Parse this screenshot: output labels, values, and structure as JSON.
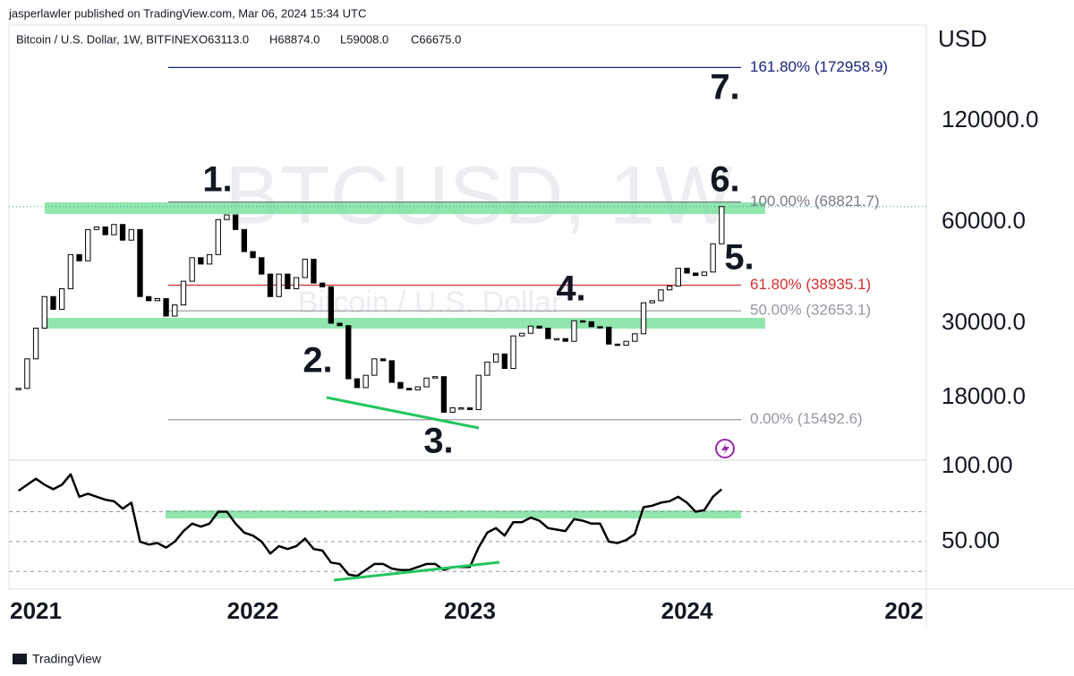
{
  "chart_data": {
    "type": "candlestick",
    "published": "jasperlawler published on TradingView.com, Mar 06, 2024 15:34 UTC",
    "symbol": "Bitcoin / U.S. Dollar, 1W, BITFINEX",
    "ohlc": [
      "O63113.0",
      "H68874.0",
      "L59008.0",
      "C66675.0"
    ],
    "watermark": [
      "BTCUSD, 1W",
      "Bitcoin / U.S. Dollar"
    ],
    "currency": "USD",
    "footer": "TradingView",
    "log_scale": true,
    "up_color": "#ffffff",
    "down_color": "#000000",
    "x": [
      2020.92,
      2020.96,
      2021.0,
      2021.04,
      2021.08,
      2021.12,
      2021.16,
      2021.2,
      2021.24,
      2021.28,
      2021.32,
      2021.36,
      2021.4,
      2021.44,
      2021.48,
      2021.52,
      2021.56,
      2021.6,
      2021.64,
      2021.68,
      2021.72,
      2021.76,
      2021.8,
      2021.84,
      2021.88,
      2021.92,
      2021.96,
      2022.0,
      2022.04,
      2022.08,
      2022.12,
      2022.16,
      2022.2,
      2022.24,
      2022.28,
      2022.32,
      2022.36,
      2022.4,
      2022.44,
      2022.48,
      2022.52,
      2022.56,
      2022.6,
      2022.64,
      2022.68,
      2022.72,
      2022.76,
      2022.8,
      2022.84,
      2022.88,
      2022.92,
      2022.96,
      2023.0,
      2023.04,
      2023.08,
      2023.12,
      2023.16,
      2023.2,
      2023.24,
      2023.28,
      2023.32,
      2023.36,
      2023.4,
      2023.44,
      2023.48,
      2023.52,
      2023.56,
      2023.6,
      2023.64,
      2023.68,
      2023.72,
      2023.76,
      2023.8,
      2023.84,
      2023.88,
      2023.92,
      2023.96,
      2024.0,
      2024.04,
      2024.08,
      2024.12,
      2024.16
    ],
    "values": [
      19200,
      23500,
      29000,
      36000,
      33000,
      38000,
      48000,
      46000,
      57000,
      58000,
      55000,
      59000,
      53000,
      57000,
      36000,
      35000,
      35500,
      31500,
      34000,
      40000,
      47000,
      45000,
      48000,
      61000,
      63000,
      57000,
      49000,
      47000,
      42000,
      36000,
      42000,
      38000,
      41000,
      46500,
      39500,
      38500,
      30000,
      29500,
      20500,
      19300,
      21000,
      23500,
      23200,
      20000,
      19200,
      19000,
      19400,
      20600,
      20800,
      16300,
      16800,
      16800,
      16600,
      21000,
      23000,
      24300,
      22000,
      27500,
      28000,
      29400,
      29000,
      27000,
      27000,
      26500,
      30500,
      30300,
      29300,
      29200,
      26000,
      25800,
      26500,
      27900,
      34500,
      35000,
      37700,
      38700,
      43700,
      42300,
      41600,
      42600,
      51700,
      66675
    ],
    "xlim": [
      2020.876,
      2025.103
    ],
    "xticks": [
      2021,
      2022,
      2023,
      2024,
      {
        "value": 2025,
        "label": "202"
      }
    ],
    "ylim": [
      11880,
      231300
    ],
    "yticks": [
      {
        "value": 120000,
        "label": "120000.0"
      },
      {
        "value": 60000,
        "label": "60000.0"
      },
      {
        "value": 30000,
        "label": "30000.0"
      },
      {
        "value": 18000,
        "label": "18000.0"
      }
    ],
    "fib_levels": [
      {
        "label": "161.80% (172958.9)",
        "value": 172958.9,
        "color": "#1a237e"
      },
      {
        "label": "100.00% (68821.7)",
        "value": 68821.7,
        "color": "#787b86"
      },
      {
        "label": "61.80% (38935.1)",
        "value": 38935.1,
        "color": "#d32f2f"
      },
      {
        "label": "50.00% (32653.1)",
        "value": 32653.1,
        "color": "#9598a1"
      },
      {
        "label": "0.00% (15492.6)",
        "value": 15492.6,
        "color": "#9598a1"
      }
    ],
    "wave_labels": [
      "1.",
      "2.",
      "3.",
      "4.",
      "5.",
      "6.",
      "7."
    ],
    "rsi": {
      "color": "#000000",
      "values": [
        84,
        88,
        92,
        88,
        85,
        88,
        95,
        80,
        82,
        80,
        78,
        77,
        72,
        76,
        50,
        48,
        49,
        46,
        50,
        57,
        62,
        60,
        62,
        70,
        70,
        62,
        56,
        54,
        50,
        42,
        47,
        45,
        47,
        52,
        45,
        44,
        36,
        35,
        28,
        27,
        31,
        35,
        35,
        32,
        31,
        31,
        33,
        35,
        35,
        31,
        33,
        33,
        33,
        46,
        56,
        59,
        54,
        63,
        63,
        66,
        64,
        59,
        58,
        57,
        65,
        64,
        62,
        62,
        50,
        49,
        51,
        55,
        73,
        74,
        76,
        77,
        80,
        76,
        70,
        71,
        80,
        85
      ],
      "ylim": [
        20,
        102
      ],
      "yticks": [
        {
          "value": 100,
          "label": "100.00"
        },
        {
          "value": 50,
          "label": "50.00"
        }
      ],
      "levels": [
        70,
        50,
        30
      ]
    }
  }
}
